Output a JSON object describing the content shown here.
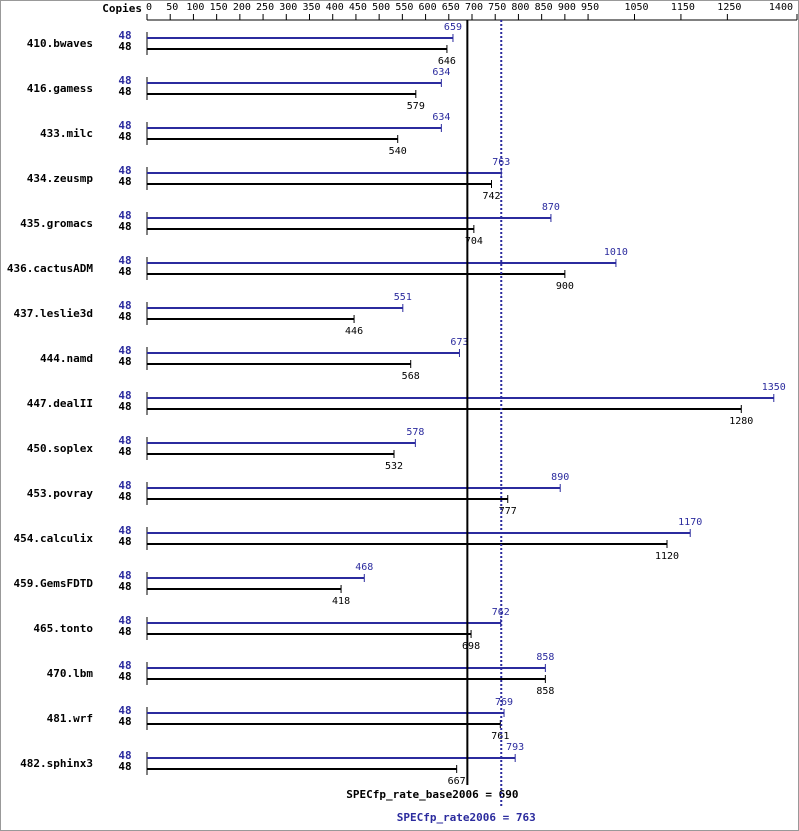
{
  "chart_data": {
    "type": "bar",
    "orientation": "horizontal",
    "x_label": "Copies",
    "categories": [
      "410.bwaves",
      "416.gamess",
      "433.milc",
      "434.zeusmp",
      "435.gromacs",
      "436.cactusADM",
      "437.leslie3d",
      "444.namd",
      "447.dealII",
      "450.soplex",
      "453.povray",
      "454.calculix",
      "459.GemsFDTD",
      "465.tonto",
      "470.lbm",
      "481.wrf",
      "482.sphinx3"
    ],
    "series": [
      {
        "color": "#2b2b9e",
        "copies": [
          48,
          48,
          48,
          48,
          48,
          48,
          48,
          48,
          48,
          48,
          48,
          48,
          48,
          48,
          48,
          48,
          48
        ],
        "values": [
          659,
          634,
          634,
          763,
          870,
          1010,
          551,
          673,
          1350,
          578,
          890,
          1170,
          468,
          762,
          858,
          769,
          793
        ]
      },
      {
        "color": "#000000",
        "copies": [
          48,
          48,
          48,
          48,
          48,
          48,
          48,
          48,
          48,
          48,
          48,
          48,
          48,
          48,
          48,
          48,
          48
        ],
        "values": [
          646,
          579,
          540,
          742,
          704,
          900,
          446,
          568,
          1280,
          532,
          777,
          1120,
          418,
          698,
          858,
          761,
          667
        ]
      }
    ],
    "summary": [
      {
        "label": "SPECfp_rate_base2006 = 690",
        "value": 690,
        "color": "#000000",
        "style": "solid"
      },
      {
        "label": "SPECfp_rate2006 = 763",
        "value": 763,
        "color": "#2b2b9e",
        "style": "dotted"
      }
    ],
    "xlim": [
      0,
      1400
    ],
    "xticks": [
      0,
      50,
      100,
      150,
      200,
      250,
      300,
      350,
      400,
      450,
      500,
      550,
      600,
      650,
      700,
      750,
      800,
      850,
      900,
      950,
      1050,
      1150,
      1250,
      1400
    ]
  }
}
